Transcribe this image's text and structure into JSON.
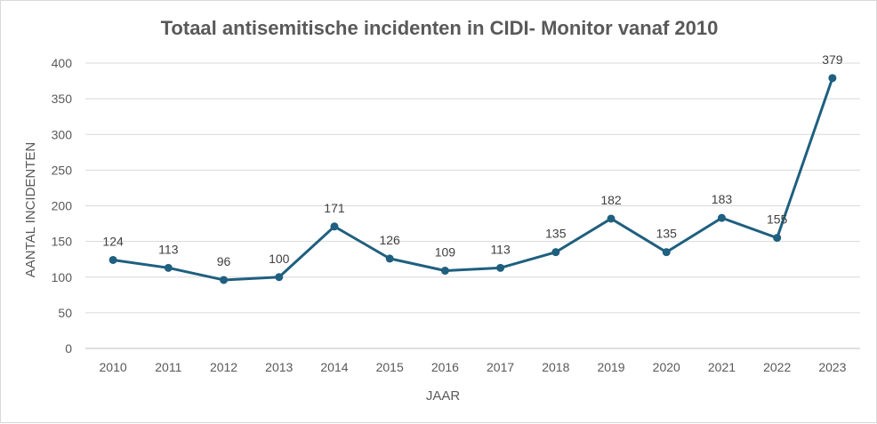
{
  "chart_data": {
    "type": "line",
    "title": "Totaal antisemitische incidenten in CIDI- Monitor vanaf 2010",
    "xlabel": "JAAR",
    "ylabel": "AANTAL INCIDENTEN",
    "categories": [
      "2010",
      "2011",
      "2012",
      "2013",
      "2014",
      "2015",
      "2016",
      "2017",
      "2018",
      "2019",
      "2020",
      "2021",
      "2022",
      "2023"
    ],
    "series": [
      {
        "name": "Incidenten",
        "values": [
          124,
          113,
          96,
          100,
          171,
          126,
          109,
          113,
          135,
          182,
          135,
          183,
          155,
          379
        ]
      }
    ],
    "ylim": [
      0,
      400
    ],
    "yticks": [
      0,
      50,
      100,
      150,
      200,
      250,
      300,
      350,
      400
    ],
    "grid": true,
    "legend": "none",
    "color": "#1f5f7f"
  }
}
